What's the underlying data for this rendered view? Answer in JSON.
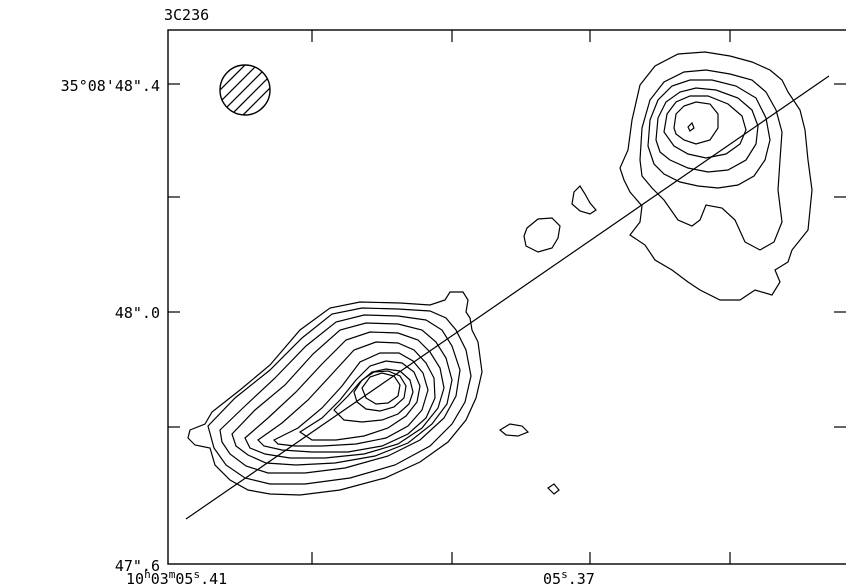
{
  "title": "3C236",
  "dec_labels": {
    "top": "35°08'48\".4",
    "mid": "48\".0",
    "bot": "47\".6"
  },
  "ra_labels": {
    "left": {
      "pre": "10",
      "h": "h",
      "mid": "03",
      "m": "m",
      "num": "05",
      "s": "s",
      "frac": ".41"
    },
    "right": {
      "num": "05",
      "s": "s",
      "frac": ".37"
    }
  },
  "colors": {
    "ink": "#000000",
    "background": "#ffffff"
  },
  "beam_icon": "hatched-circle-beam"
}
